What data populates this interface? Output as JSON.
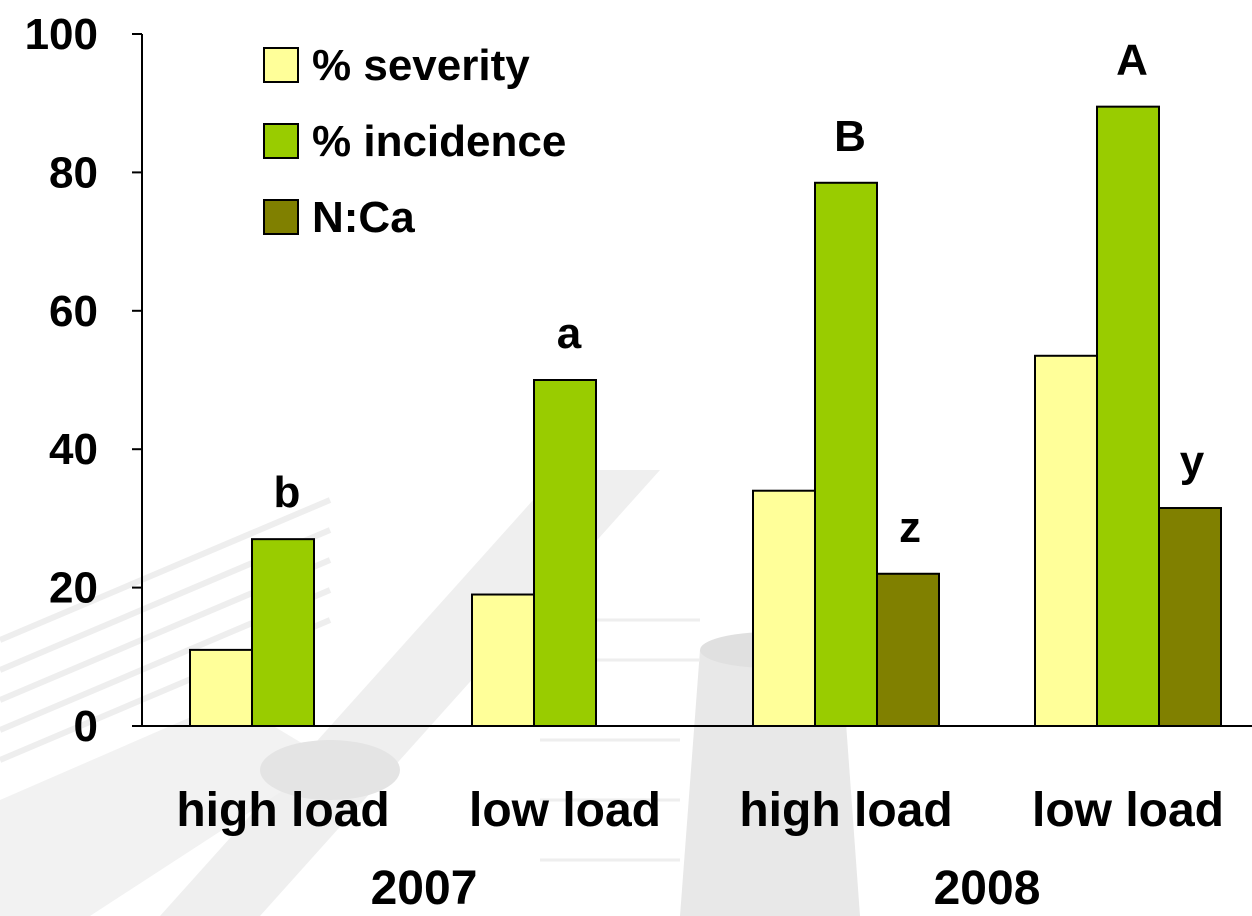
{
  "chart_data": {
    "type": "bar",
    "categories": [
      "high load",
      "low load",
      "high load",
      "low load"
    ],
    "groups": [
      {
        "label": "2007",
        "categories": [
          0,
          1
        ]
      },
      {
        "label": "2008",
        "categories": [
          2,
          3
        ]
      }
    ],
    "series": [
      {
        "name": "% severity",
        "color": "#ffff99",
        "values": [
          11,
          19,
          34,
          53.5
        ]
      },
      {
        "name": "% incidence",
        "color": "#99cc00",
        "values": [
          27,
          50,
          78.5,
          89.5
        ]
      },
      {
        "name": "N:Ca",
        "color": "#808000",
        "values": [
          null,
          null,
          22,
          31.5
        ]
      }
    ],
    "annotations": [
      {
        "category": 0,
        "series": 1,
        "text": "b"
      },
      {
        "category": 1,
        "series": 1,
        "text": "a"
      },
      {
        "category": 2,
        "series": 1,
        "text": "B"
      },
      {
        "category": 3,
        "series": 1,
        "text": "A"
      },
      {
        "category": 2,
        "series": 2,
        "text": "z"
      },
      {
        "category": 3,
        "series": 2,
        "text": "y"
      }
    ],
    "ylim": [
      0,
      100
    ],
    "yticks": [
      0,
      20,
      40,
      60,
      80,
      100
    ],
    "xlabel": "",
    "ylabel": "",
    "title": "",
    "grid": false,
    "legend": "top-left"
  }
}
